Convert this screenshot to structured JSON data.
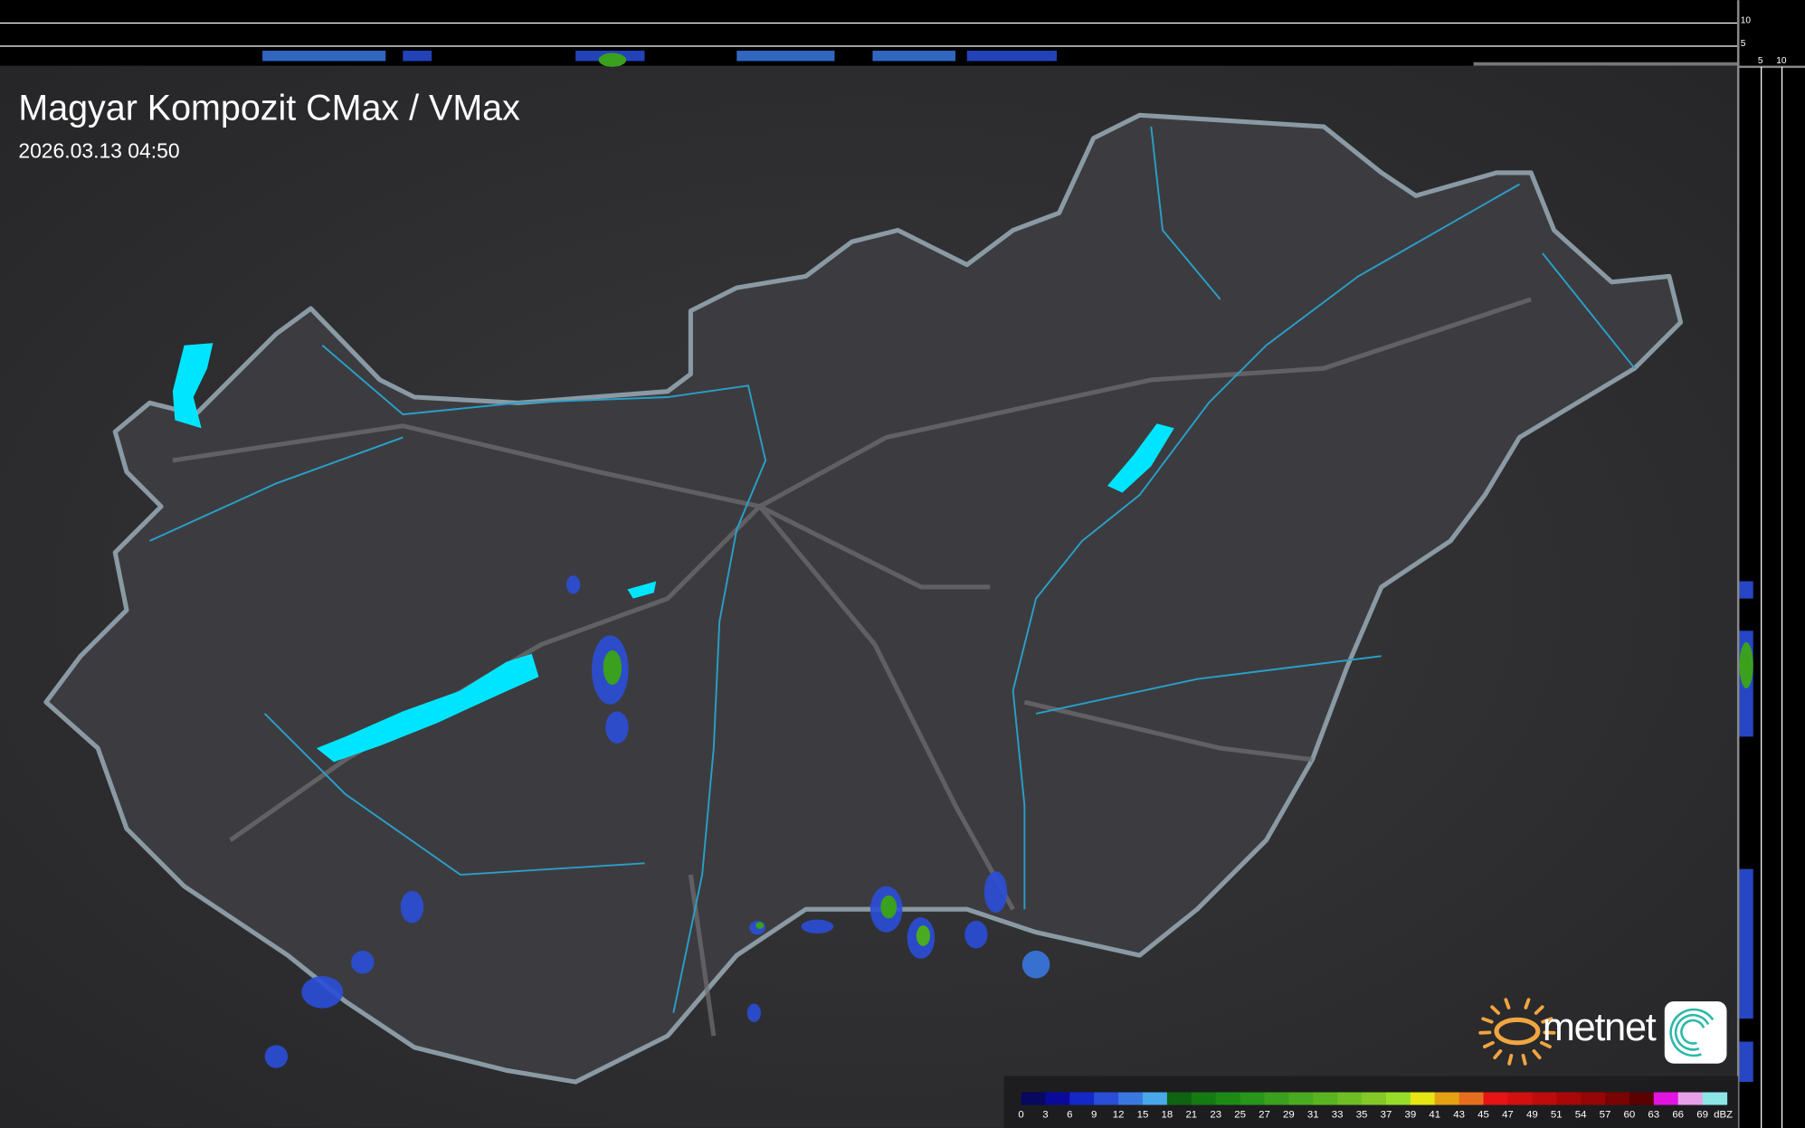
{
  "header": {
    "title": "Magyar Kompozit CMax / VMax",
    "timestamp": "2026.03.13 04:50"
  },
  "profile_axes": {
    "top_strip_labels": [
      "10",
      "5"
    ],
    "side_strip_labels": [
      "5",
      "10"
    ]
  },
  "logo": {
    "text": "metnet",
    "sun_color": "#f0a640",
    "swirl_color": "#2bb8a8"
  },
  "legend": {
    "unit": "dBZ",
    "labels": [
      "0",
      "3",
      "6",
      "9",
      "12",
      "15",
      "18",
      "21",
      "23",
      "25",
      "27",
      "29",
      "31",
      "33",
      "35",
      "37",
      "39",
      "41",
      "43",
      "45",
      "47",
      "49",
      "51",
      "54",
      "57",
      "60",
      "63",
      "66",
      "69"
    ],
    "colors": [
      "#08085e",
      "#0a0a9a",
      "#1428c8",
      "#2a4ed8",
      "#3a78e0",
      "#48a8ea",
      "#0e6410",
      "#167a12",
      "#1e8a16",
      "#28961a",
      "#3aa01e",
      "#4aaa20",
      "#5ab422",
      "#6cbe24",
      "#84c828",
      "#98dc2a",
      "#e6e614",
      "#e6a014",
      "#e66e1e",
      "#e61414",
      "#d21010",
      "#be0c0c",
      "#aa0808",
      "#960606",
      "#7a0404",
      "#5a0202",
      "#e214e2",
      "#e8a0e8",
      "#8ce6e6"
    ]
  },
  "map": {
    "water_color": "#00e5ff",
    "border_color": "#8a9aa4",
    "river_color": "#2a9fc8"
  }
}
